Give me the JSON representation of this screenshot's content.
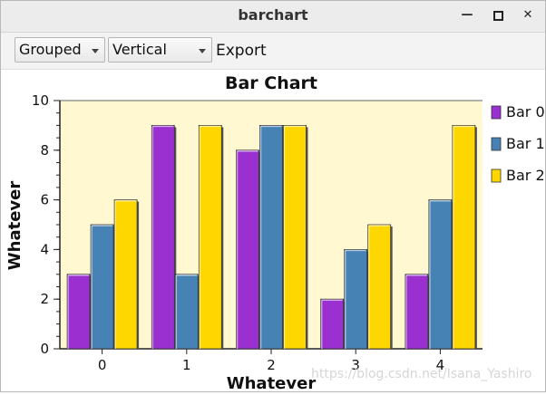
{
  "window": {
    "title": "barchart",
    "minimize": "▁",
    "maximize": "▫",
    "close": "✕"
  },
  "toolbar": {
    "mode_combo": "Grouped",
    "orientation_combo": "Vertical",
    "export_label": "Export"
  },
  "watermark": "https://blog.csdn.net/Isana_Yashiro",
  "chart_data": {
    "type": "bar",
    "title": "Bar Chart",
    "xlabel": "Whatever",
    "ylabel": "Whatever",
    "categories": [
      "0",
      "1",
      "2",
      "3",
      "4"
    ],
    "ylim": [
      0,
      10
    ],
    "yticks": [
      "0",
      "2",
      "4",
      "6",
      "8",
      "10"
    ],
    "legend_position": "right",
    "background": "#fff8d0",
    "series": [
      {
        "name": "Bar 0",
        "color": "#9b30d0",
        "values": [
          3,
          9,
          8,
          2,
          3
        ]
      },
      {
        "name": "Bar 1",
        "color": "#4682b4",
        "values": [
          5,
          3,
          9,
          4,
          6
        ]
      },
      {
        "name": "Bar 2",
        "color": "#ffd700",
        "values": [
          6,
          9,
          9,
          5,
          9
        ]
      }
    ]
  }
}
